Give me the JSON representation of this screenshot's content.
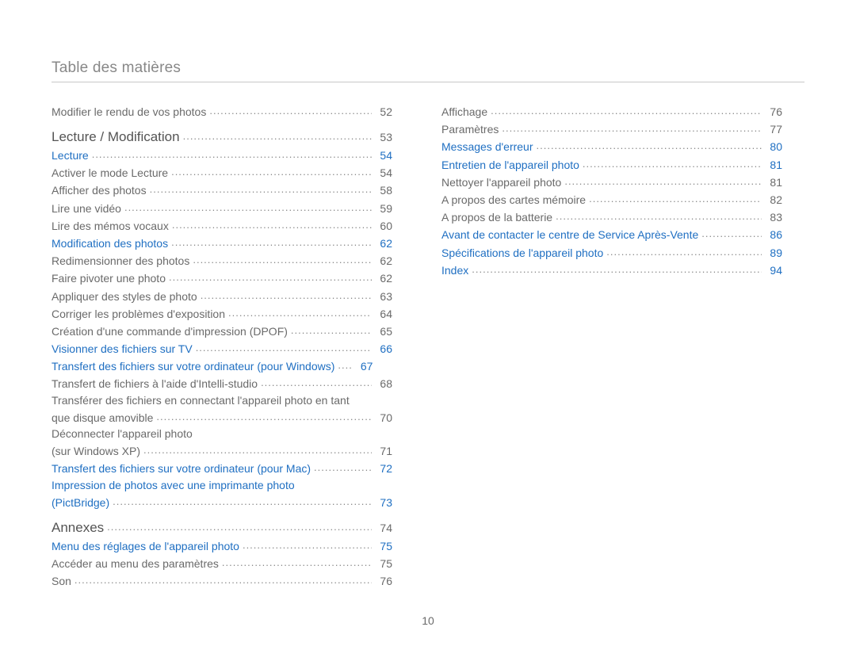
{
  "header": {
    "title": "Table des matières"
  },
  "footer": {
    "page_number": "10"
  },
  "colors": {
    "text": "#6a6a6a",
    "link": "#1f6fc2",
    "header_text": "#888888",
    "rule": "#c8c8c8",
    "background": "#ffffff"
  },
  "typography": {
    "body_fontsize_pt": 10.5,
    "section_fontsize_pt": 13,
    "header_fontsize_pt": 14,
    "font_family": "Helvetica Neue, Arial, sans-serif",
    "font_weight": 300
  },
  "left_column": [
    {
      "kind": "entry",
      "label": "Modifier le rendu de vos photos",
      "page": "52"
    },
    {
      "kind": "section",
      "label": "Lecture / Modification",
      "page": "53"
    },
    {
      "kind": "link",
      "label": "Lecture",
      "page": "54"
    },
    {
      "kind": "entry",
      "label": "Activer le mode Lecture",
      "page": "54"
    },
    {
      "kind": "entry",
      "label": "Afficher des photos",
      "page": "58"
    },
    {
      "kind": "entry",
      "label": "Lire une vidéo",
      "page": "59"
    },
    {
      "kind": "entry",
      "label": "Lire des mémos vocaux",
      "page": "60"
    },
    {
      "kind": "link",
      "label": "Modification des photos",
      "page": "62"
    },
    {
      "kind": "entry",
      "label": "Redimensionner des photos",
      "page": "62"
    },
    {
      "kind": "entry",
      "label": "Faire pivoter une photo",
      "page": "62"
    },
    {
      "kind": "entry",
      "label": "Appliquer des styles de photo",
      "page": "63"
    },
    {
      "kind": "entry",
      "label": "Corriger les problèmes d'exposition",
      "page": "64"
    },
    {
      "kind": "entry",
      "label": "Création d'une commande d'impression (DPOF)",
      "page": "65"
    },
    {
      "kind": "link",
      "label": "Visionner des fichiers sur TV",
      "page": "66"
    },
    {
      "kind": "link",
      "label": "Transfert des fichiers sur votre ordinateur (pour Windows)",
      "page": "67",
      "short_leader": true
    },
    {
      "kind": "entry",
      "label": "Transfert de fichiers à l'aide d'Intelli-studio",
      "page": "68"
    },
    {
      "kind": "cont",
      "label": "Transférer des fichiers en connectant l'appareil photo en tant"
    },
    {
      "kind": "entry",
      "label": "que disque amovible",
      "page": "70"
    },
    {
      "kind": "cont",
      "label": "Déconnecter l'appareil photo"
    },
    {
      "kind": "entry",
      "label": "(sur Windows XP)",
      "page": "71"
    },
    {
      "kind": "link",
      "label": "Transfert des fichiers sur votre ordinateur (pour Mac)",
      "page": "72"
    },
    {
      "kind": "link-cont",
      "label": "Impression de photos avec une imprimante photo"
    },
    {
      "kind": "link",
      "label": "(PictBridge)",
      "page": "73"
    },
    {
      "kind": "section",
      "label": "Annexes",
      "page": "74"
    },
    {
      "kind": "link",
      "label": "Menu des réglages de l'appareil photo",
      "page": "75"
    },
    {
      "kind": "entry",
      "label": "Accéder au menu des paramètres",
      "page": "75"
    },
    {
      "kind": "entry",
      "label": "Son",
      "page": "76"
    }
  ],
  "right_column": [
    {
      "kind": "entry",
      "label": "Affichage",
      "page": "76"
    },
    {
      "kind": "entry",
      "label": "Paramètres",
      "page": "77"
    },
    {
      "kind": "link",
      "label": "Messages d'erreur",
      "page": "80"
    },
    {
      "kind": "link",
      "label": "Entretien de l'appareil photo",
      "page": "81"
    },
    {
      "kind": "entry",
      "label": "Nettoyer l'appareil photo",
      "page": "81"
    },
    {
      "kind": "entry",
      "label": "A propos des cartes mémoire",
      "page": "82"
    },
    {
      "kind": "entry",
      "label": "A propos de la batterie",
      "page": "83"
    },
    {
      "kind": "link",
      "label": "Avant de contacter le centre de Service Après-Vente",
      "page": "86"
    },
    {
      "kind": "link",
      "label": "Spécifications de l'appareil photo",
      "page": "89"
    },
    {
      "kind": "link",
      "label": "Index",
      "page": "94"
    }
  ]
}
